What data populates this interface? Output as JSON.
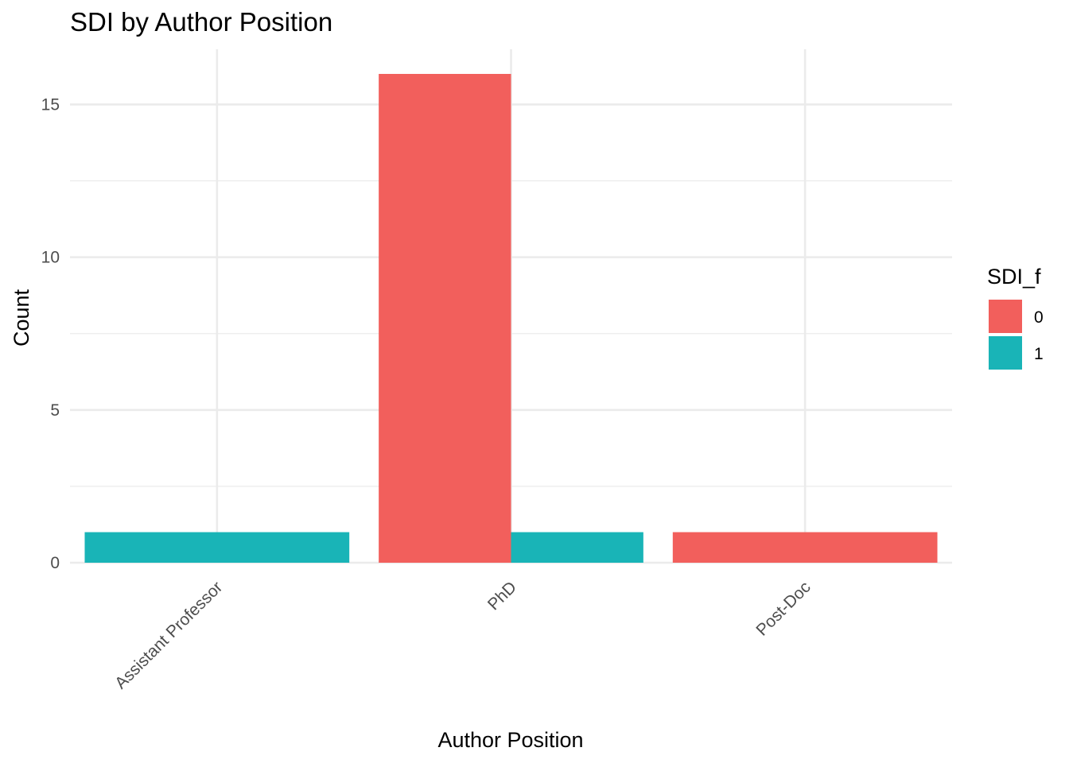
{
  "chart_data": {
    "type": "bar",
    "title": "SDI by Author Position",
    "xlabel": "Author Position",
    "ylabel": "Count",
    "categories": [
      "Assistant Professor",
      "PhD",
      "Post-Doc"
    ],
    "series": [
      {
        "name": "0",
        "color": "#F25F5C",
        "values": [
          0,
          16,
          1
        ]
      },
      {
        "name": "1",
        "color": "#19B4B7",
        "values": [
          1,
          1,
          0
        ]
      }
    ],
    "ylim": [
      0,
      16.8
    ],
    "yticks": [
      0,
      5,
      10,
      15
    ],
    "legend": {
      "title": "SDI_f",
      "position": "right"
    },
    "grid": true
  }
}
